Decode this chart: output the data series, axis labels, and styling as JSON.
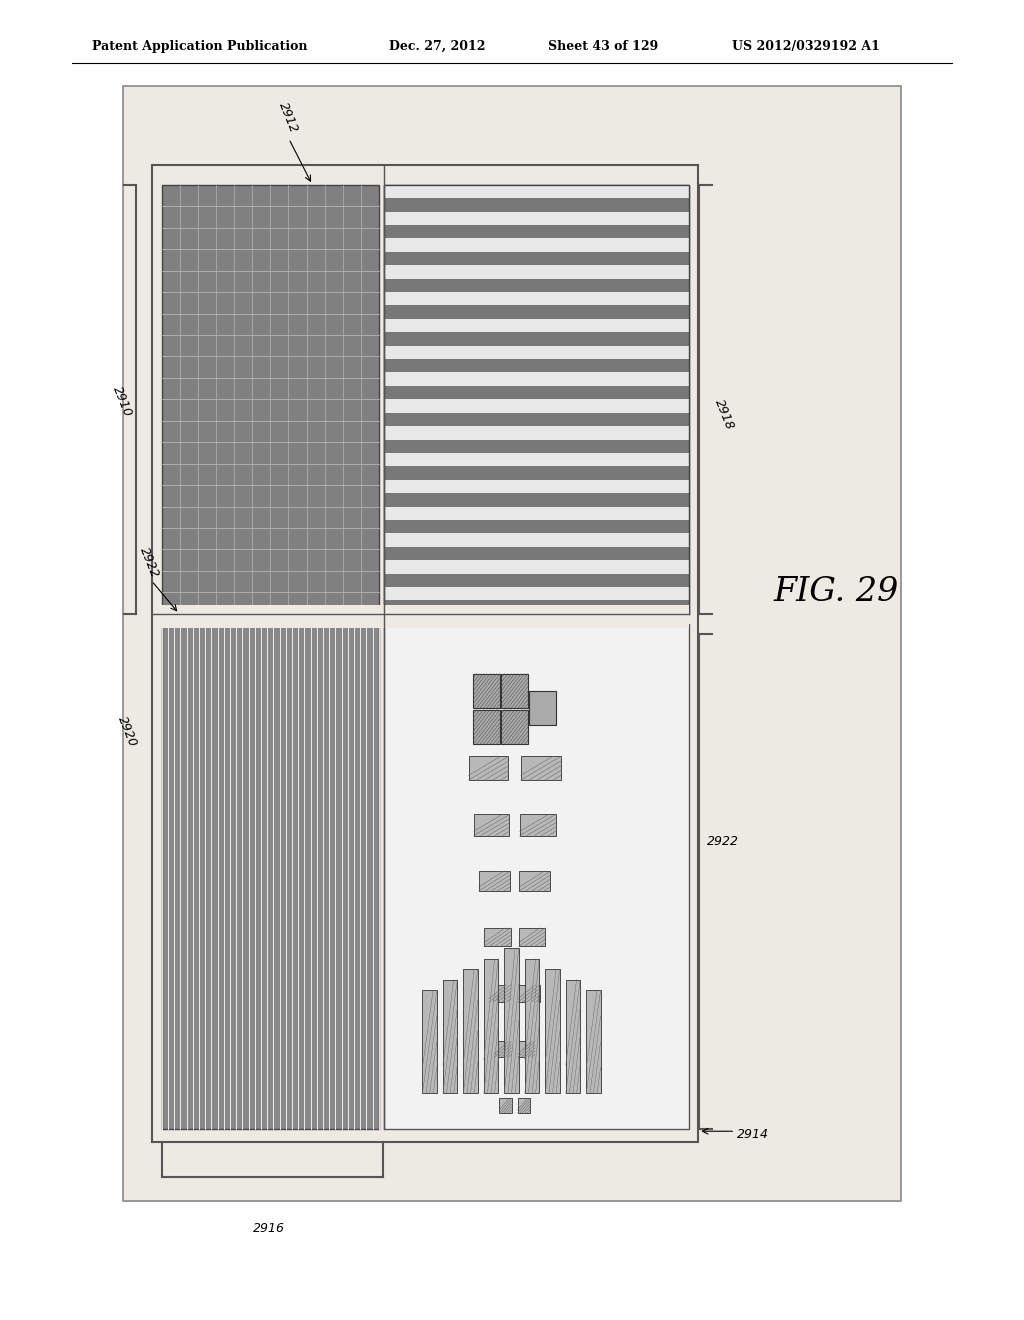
{
  "bg_color": "#ede9e3",
  "page_bg": "#ffffff",
  "header_text": "Patent Application Publication",
  "header_date": "Dec. 27, 2012",
  "header_sheet": "Sheet 43 of 129",
  "header_patent": "US 2012/0329192 A1",
  "fig_label": "FIG. 29",
  "dark_gray": "#7a7a7a",
  "medium_gray": "#a0a0a0",
  "light_gray": "#c8c8c8",
  "white": "#ffffff"
}
